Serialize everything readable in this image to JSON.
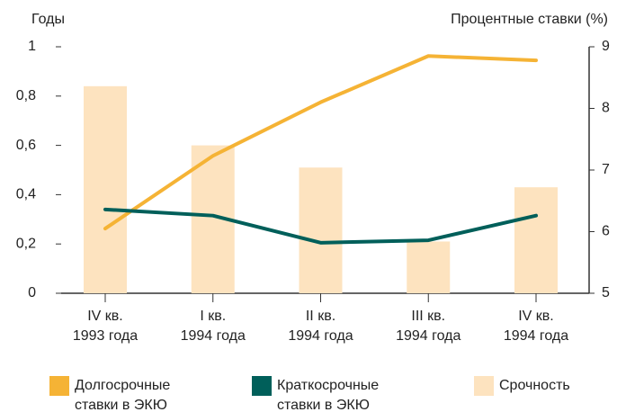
{
  "chart_data": {
    "type": "bar",
    "y_label": "Годы",
    "y2_label": "Процентные ставки (%)",
    "categories": [
      "IV кв.\n1993 года",
      "I кв.\n1994 года",
      "II кв.\n1994 года",
      "III кв.\n1994 года",
      "IV кв.\n1994 года"
    ],
    "series": [
      {
        "name": "Долгосрочные\nставки в ЭКЮ",
        "type": "line",
        "axis": "y2",
        "color": "#f5b335",
        "values": [
          6.05,
          7.23,
          8.1,
          8.85,
          8.78
        ]
      },
      {
        "name": "Краткосрочные\nставки в ЭКЮ",
        "type": "line",
        "axis": "y2",
        "color": "#005f5a",
        "values": [
          6.36,
          6.26,
          5.82,
          5.86,
          6.26
        ]
      },
      {
        "name": "Срочность",
        "type": "bar",
        "color": "#fde3bf",
        "values": [
          0.84,
          0.6,
          0.51,
          0.21,
          0.43
        ]
      }
    ],
    "ylim": [
      0,
      1
    ],
    "yticks": [
      0,
      {
        "value": 0.2,
        "label": "0,2"
      },
      {
        "value": 0.4,
        "label": "0,4"
      },
      {
        "value": 0.6,
        "label": "0,6"
      },
      {
        "value": 0.8,
        "label": "0,8"
      },
      1
    ],
    "y2lim": [
      5,
      9
    ],
    "y2ticks": [
      5,
      6,
      7,
      8,
      9
    ],
    "grid": false
  }
}
